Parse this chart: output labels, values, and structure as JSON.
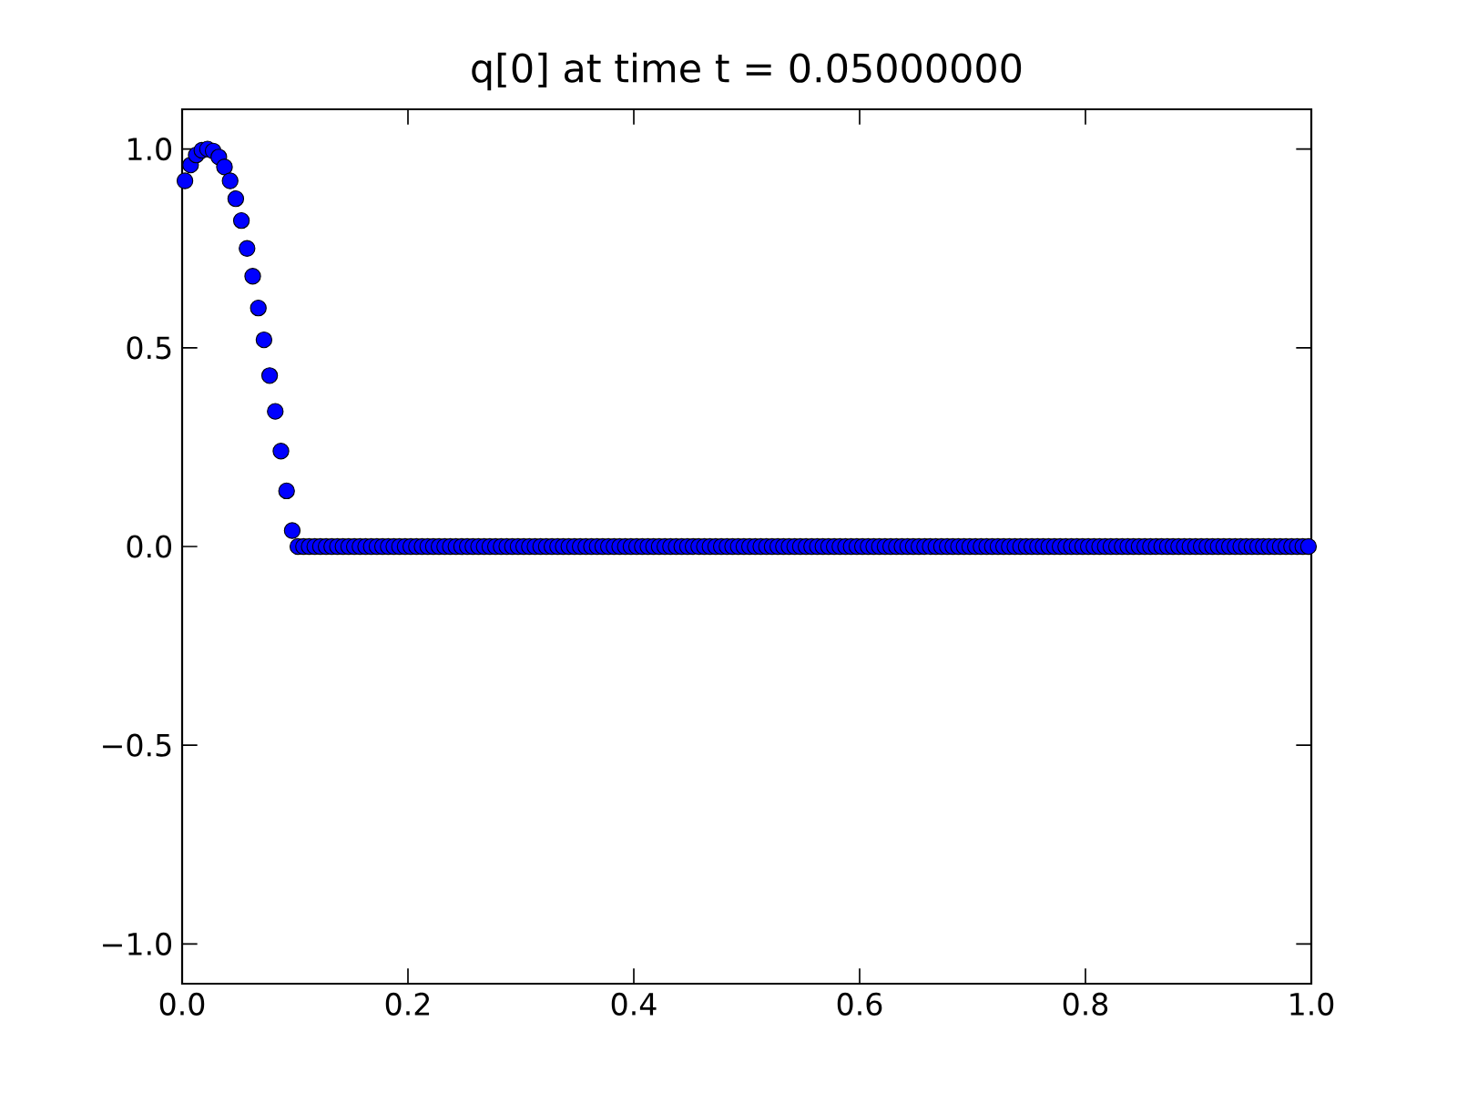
{
  "chart_data": {
    "type": "scatter",
    "title": "q[0] at time t =     0.05000000",
    "x": [
      0.0025,
      0.0075,
      0.0125,
      0.0175,
      0.0225,
      0.0275,
      0.0325,
      0.0375,
      0.0425,
      0.0475,
      0.0525,
      0.0575,
      0.0625,
      0.0675,
      0.0725,
      0.0775,
      0.0825,
      0.0875,
      0.0925,
      0.0975,
      0.1025,
      0.1075,
      0.1125,
      0.1175,
      0.1225,
      0.1275,
      0.1325,
      0.1375,
      0.1425,
      0.1475,
      0.1525,
      0.1575,
      0.1625,
      0.1675,
      0.1725,
      0.1775,
      0.1825,
      0.1875,
      0.1925,
      0.1975,
      0.2025,
      0.2075,
      0.2125,
      0.2175,
      0.2225,
      0.2275,
      0.2325,
      0.2375,
      0.2425,
      0.2475,
      0.2525,
      0.2575,
      0.2625,
      0.2675,
      0.2725,
      0.2775,
      0.2825,
      0.2875,
      0.2925,
      0.2975,
      0.3025,
      0.3075,
      0.3125,
      0.3175,
      0.3225,
      0.3275,
      0.3325,
      0.3375,
      0.3425,
      0.3475,
      0.3525,
      0.3575,
      0.3625,
      0.3675,
      0.3725,
      0.3775,
      0.3825,
      0.3875,
      0.3925,
      0.3975,
      0.4025,
      0.4075,
      0.4125,
      0.4175,
      0.4225,
      0.4275,
      0.4325,
      0.4375,
      0.4425,
      0.4475,
      0.4525,
      0.4575,
      0.4625,
      0.4675,
      0.4725,
      0.4775,
      0.4825,
      0.4875,
      0.4925,
      0.4975,
      0.5025,
      0.5075,
      0.5125,
      0.5175,
      0.5225,
      0.5275,
      0.5325,
      0.5375,
      0.5425,
      0.5475,
      0.5525,
      0.5575,
      0.5625,
      0.5675,
      0.5725,
      0.5775,
      0.5825,
      0.5875,
      0.5925,
      0.5975,
      0.6025,
      0.6075,
      0.6125,
      0.6175,
      0.6225,
      0.6275,
      0.6325,
      0.6375,
      0.6425,
      0.6475,
      0.6525,
      0.6575,
      0.6625,
      0.6675,
      0.6725,
      0.6775,
      0.6825,
      0.6875,
      0.6925,
      0.6975,
      0.7025,
      0.7075,
      0.7125,
      0.7175,
      0.7225,
      0.7275,
      0.7325,
      0.7375,
      0.7425,
      0.7475,
      0.7525,
      0.7575,
      0.7625,
      0.7675,
      0.7725,
      0.7775,
      0.7825,
      0.7875,
      0.7925,
      0.7975,
      0.8025,
      0.8075,
      0.8125,
      0.8175,
      0.8225,
      0.8275,
      0.8325,
      0.8375,
      0.8425,
      0.8475,
      0.8525,
      0.8575,
      0.8625,
      0.8675,
      0.8725,
      0.8775,
      0.8825,
      0.8875,
      0.8925,
      0.8975,
      0.9025,
      0.9075,
      0.9125,
      0.9175,
      0.9225,
      0.9275,
      0.9325,
      0.9375,
      0.9425,
      0.9475,
      0.9525,
      0.9575,
      0.9625,
      0.9675,
      0.9725,
      0.9775,
      0.9825,
      0.9875,
      0.9925,
      0.9975
    ],
    "series": [
      {
        "color": "#0000ff",
        "values": [
          0.92,
          0.96,
          0.985,
          0.997,
          1.0,
          0.995,
          0.98,
          0.955,
          0.92,
          0.875,
          0.82,
          0.75,
          0.68,
          0.6,
          0.52,
          0.43,
          0.34,
          0.24,
          0.14,
          0.04,
          0,
          0,
          0,
          0,
          0,
          0,
          0,
          0,
          0,
          0,
          0,
          0,
          0,
          0,
          0,
          0,
          0,
          0,
          0,
          0,
          0,
          0,
          0,
          0,
          0,
          0,
          0,
          0,
          0,
          0,
          0,
          0,
          0,
          0,
          0,
          0,
          0,
          0,
          0,
          0,
          0,
          0,
          0,
          0,
          0,
          0,
          0,
          0,
          0,
          0,
          0,
          0,
          0,
          0,
          0,
          0,
          0,
          0,
          0,
          0,
          0,
          0,
          0,
          0,
          0,
          0,
          0,
          0,
          0,
          0,
          0,
          0,
          0,
          0,
          0,
          0,
          0,
          0,
          0,
          0,
          0,
          0,
          0,
          0,
          0,
          0,
          0,
          0,
          0,
          0,
          0,
          0,
          0,
          0,
          0,
          0,
          0,
          0,
          0,
          0,
          0,
          0,
          0,
          0,
          0,
          0,
          0,
          0,
          0,
          0,
          0,
          0,
          0,
          0,
          0,
          0,
          0,
          0,
          0,
          0,
          0,
          0,
          0,
          0,
          0,
          0,
          0,
          0,
          0,
          0,
          0,
          0,
          0,
          0,
          0,
          0,
          0,
          0,
          0,
          0,
          0,
          0,
          0,
          0,
          0,
          0,
          0,
          0,
          0,
          0,
          0,
          0,
          0,
          0,
          0,
          0,
          0,
          0,
          0,
          0,
          0,
          0,
          0,
          0,
          0,
          0,
          0,
          0,
          0,
          0,
          0,
          0,
          0,
          0,
          0,
          0,
          0,
          0,
          0,
          0
        ]
      }
    ],
    "marker": "circle",
    "xlim": [
      0,
      1
    ],
    "ylim": [
      -1.1,
      1.1
    ],
    "xticks": [
      {
        "value": 0,
        "label": "0.0"
      },
      {
        "value": 0.2,
        "label": "0.2"
      },
      {
        "value": 0.4,
        "label": "0.4"
      },
      {
        "value": 0.6,
        "label": "0.6"
      },
      {
        "value": 0.8,
        "label": "0.8"
      },
      {
        "value": 1,
        "label": "1.0"
      }
    ],
    "yticks": [
      {
        "value": -1,
        "label": "−1.0"
      },
      {
        "value": -0.5,
        "label": "−0.5"
      },
      {
        "value": 0,
        "label": "0.0"
      },
      {
        "value": 0.5,
        "label": "0.5"
      },
      {
        "value": 1,
        "label": "1.0"
      }
    ],
    "grid": false
  }
}
